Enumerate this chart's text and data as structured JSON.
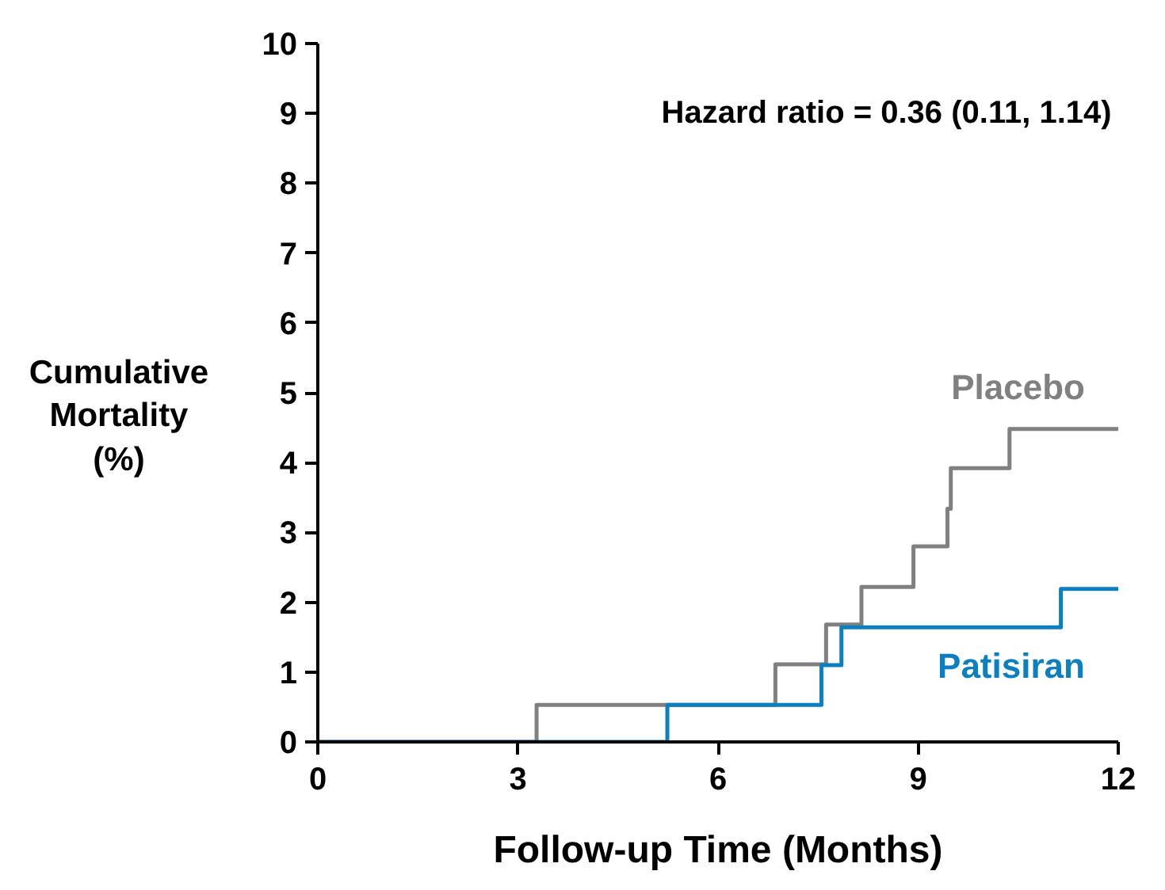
{
  "chart_data": {
    "type": "step",
    "xlabel": "Follow-up Time (Months)",
    "ylabel": "Cumulative Mortality (%)",
    "xlim": [
      0,
      12
    ],
    "xticks": [
      0,
      3,
      6,
      9,
      12
    ],
    "ylim": [
      0,
      10
    ],
    "yticks": [
      0,
      1,
      2,
      3,
      4,
      5,
      6,
      7,
      8,
      9,
      10
    ],
    "grid": false,
    "legend": false,
    "annotations": [
      "Hazard ratio = 0.36 (0.11, 1.14)"
    ],
    "series": [
      {
        "name": "Placebo",
        "color": "#808080",
        "x": [
          0,
          3.28,
          6.86,
          7.62,
          8.15,
          8.93,
          9.44,
          9.49,
          10.37,
          12
        ],
        "values": [
          0,
          0.53,
          1.11,
          1.68,
          2.22,
          2.8,
          3.34,
          3.92,
          4.48,
          4.48
        ]
      },
      {
        "name": "Patisiran",
        "color": "#0b7fbf",
        "x": [
          0,
          5.24,
          7.55,
          7.85,
          11.14,
          12
        ],
        "values": [
          0,
          0.53,
          1.1,
          1.64,
          2.19,
          2.19
        ]
      }
    ]
  }
}
